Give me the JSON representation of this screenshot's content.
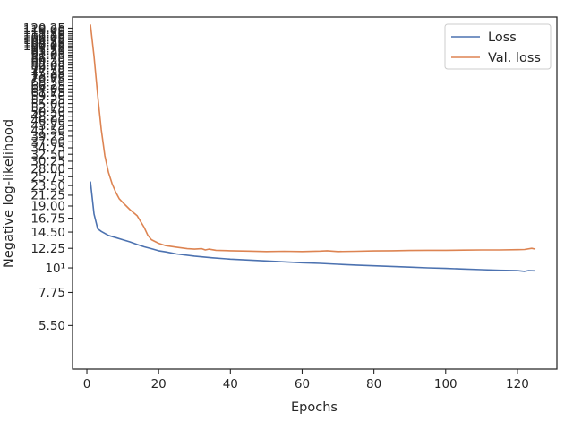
{
  "chart_data": {
    "type": "line",
    "title": "",
    "xlabel": "Epochs",
    "ylabel": "Negative log-likelihood",
    "yscale": "log",
    "xlim": [
      -4,
      131
    ],
    "ylim": [
      3.5,
      135
    ],
    "xticks": [
      0,
      20,
      40,
      60,
      80,
      100,
      120
    ],
    "xtick_labels": [
      "0",
      "20",
      "40",
      "60",
      "80",
      "100",
      "120"
    ],
    "ytick_labels": [
      "5.50",
      "7.75",
      "10¹",
      "12.25",
      "14.50",
      "16.75",
      "19.00",
      "21.25",
      "23.50",
      "25.75",
      "28.00",
      "30.25",
      "32.50",
      "34.75",
      "37.00",
      "39.25",
      "41.50",
      "43.75",
      "46.00",
      "48.25",
      "50.50",
      "52.75",
      "55.00",
      "57.25",
      "59.50",
      "61.75",
      "64.00",
      "66.25",
      "68.50",
      "70.75",
      "73.00",
      "75.25",
      "77.50",
      "79.75",
      "82.00",
      "84.25",
      "86.50",
      "88.75",
      "91.00",
      "93.25",
      "95.50",
      "97.75",
      "100.00",
      "102.25",
      "104.50",
      "106.75",
      "109.00",
      "111.25",
      "113.50",
      "115.75",
      "118.00",
      "120.25"
    ],
    "grid": false,
    "legend_position": "upper right",
    "series": [
      {
        "name": "Loss",
        "color": "#4c72b0",
        "x": [
          1,
          2,
          3,
          4,
          5,
          6,
          8,
          10,
          12,
          14,
          16,
          18,
          20,
          22,
          25,
          30,
          35,
          40,
          45,
          50,
          55,
          60,
          65,
          70,
          75,
          80,
          85,
          90,
          95,
          100,
          105,
          110,
          115,
          120,
          122,
          123,
          125
        ],
        "y": [
          24.5,
          17.5,
          15.0,
          14.6,
          14.3,
          14.0,
          13.7,
          13.4,
          13.1,
          12.75,
          12.45,
          12.2,
          11.95,
          11.8,
          11.55,
          11.3,
          11.1,
          10.95,
          10.85,
          10.75,
          10.65,
          10.55,
          10.48,
          10.38,
          10.3,
          10.22,
          10.15,
          10.08,
          10.0,
          9.95,
          9.88,
          9.82,
          9.76,
          9.72,
          9.65,
          9.72,
          9.7
        ]
      },
      {
        "name": "Val. loss",
        "color": "#dd8452",
        "x": [
          1,
          2,
          3,
          4,
          5,
          6,
          7,
          8,
          9,
          10,
          11,
          12,
          14,
          16,
          17,
          18,
          20,
          22,
          25,
          28,
          30,
          32,
          33,
          34,
          36,
          40,
          45,
          50,
          55,
          60,
          65,
          67,
          70,
          75,
          80,
          85,
          90,
          95,
          100,
          105,
          110,
          115,
          120,
          122,
          124,
          125
        ],
        "y": [
          125,
          90,
          60,
          42,
          32,
          27,
          24,
          22,
          20.5,
          19.7,
          19.0,
          18.3,
          17.2,
          15.2,
          14.0,
          13.4,
          12.9,
          12.6,
          12.4,
          12.2,
          12.15,
          12.2,
          12.05,
          12.15,
          12.0,
          11.95,
          11.9,
          11.85,
          11.88,
          11.85,
          11.9,
          11.95,
          11.85,
          11.88,
          11.92,
          11.95,
          11.98,
          12.0,
          12.0,
          12.02,
          12.05,
          12.05,
          12.08,
          12.1,
          12.25,
          12.15
        ]
      }
    ]
  }
}
